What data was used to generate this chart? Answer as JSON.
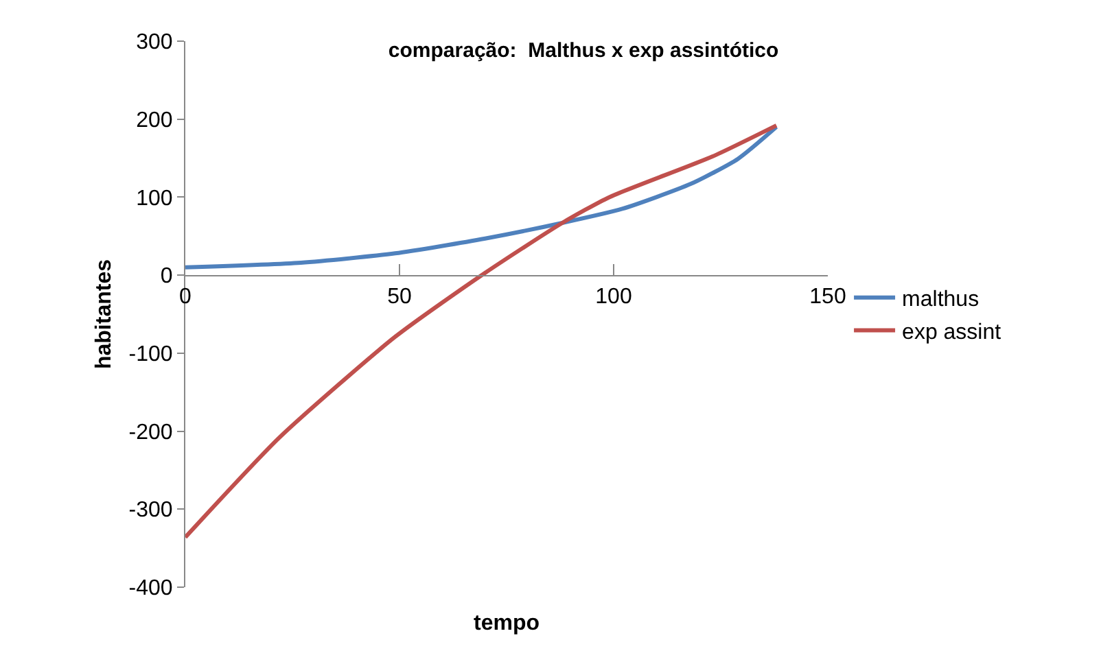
{
  "chart_data": {
    "type": "line",
    "title": "comparação:  Malthus x exp assintótico",
    "xlabel": "tempo",
    "ylabel": "habitantes",
    "xlim": [
      0,
      150
    ],
    "xticks": [
      0,
      50,
      100,
      150
    ],
    "ylim": [
      -400,
      300
    ],
    "yticks": [
      -400,
      -300,
      -200,
      -100,
      0,
      100,
      200,
      300
    ],
    "legend": "right",
    "marker": "none",
    "line_style": "solid",
    "series": [
      {
        "name": "malthus",
        "color": "#4f81bd",
        "x": [
          0,
          27,
          49,
          70,
          88,
          102,
          118,
          129,
          138
        ],
        "values": [
          10,
          16,
          28,
          47,
          67,
          85,
          117,
          149,
          190
        ]
      },
      {
        "name": "exp assint",
        "color": "#c0504d",
        "x": [
          0,
          22,
          49,
          70,
          88,
          99,
          123,
          138
        ],
        "values": [
          -336,
          -208,
          -79,
          3,
          67,
          100,
          152,
          192
        ]
      }
    ]
  }
}
